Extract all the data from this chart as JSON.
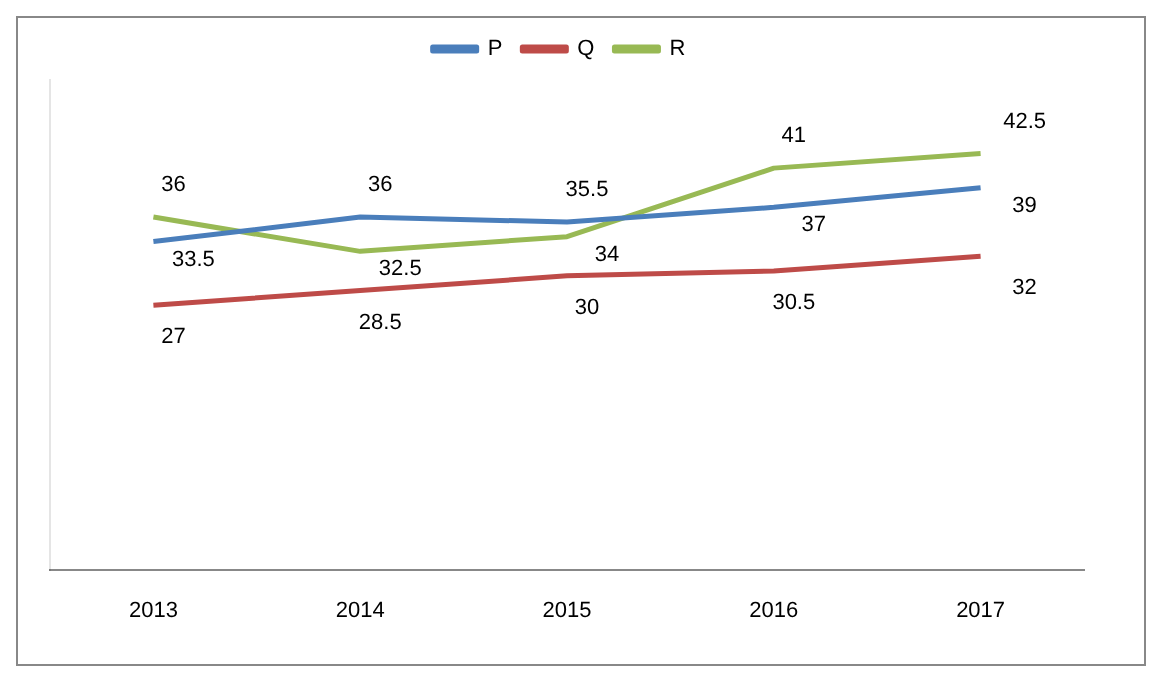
{
  "chart_data": {
    "type": "line",
    "categories": [
      "2013",
      "2014",
      "2015",
      "2016",
      "2017"
    ],
    "series": [
      {
        "name": "P",
        "color": "#4a7ebb",
        "values": [
          33.5,
          36,
          35.5,
          37,
          39
        ]
      },
      {
        "name": "Q",
        "color": "#be4b48",
        "values": [
          27,
          28.5,
          30,
          30.5,
          32
        ]
      },
      {
        "name": "R",
        "color": "#98b954",
        "values": [
          36,
          32.5,
          34,
          41,
          42.5
        ]
      }
    ],
    "ylim": [
      0,
      50
    ],
    "data_labels": true,
    "legend": "top",
    "grid": false,
    "marker": "none",
    "line_style": "solid"
  }
}
